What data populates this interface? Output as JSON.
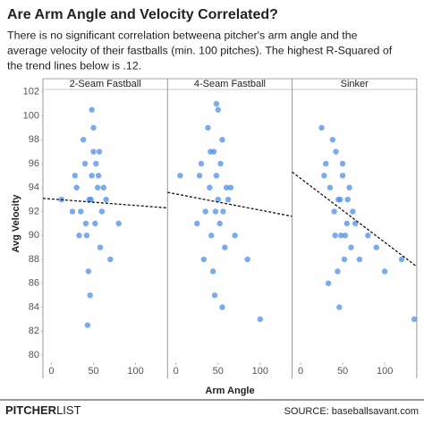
{
  "title": "Are Arm Angle and Velocity Correlated?",
  "subtitle": [
    "There is no significant correlation betweena pitcher's arm angle and the",
    "average velocity of their fastballs (min. 100 pitches). The highest R-Squared of",
    "the trend lines below is .12."
  ],
  "x_label": "Arm Angle",
  "y_label": "Avg Velocity",
  "brand": {
    "bold": "PITCHER",
    "light": "LIST"
  },
  "source": "SOURCE: baseballsavant.com",
  "chart_data": [
    {
      "type": "scatter",
      "title": "2-Seam Fastball",
      "color": "#4f8fe6",
      "x": [
        30,
        35,
        40,
        42,
        45,
        48,
        50,
        52,
        55,
        58,
        60,
        38,
        44,
        47,
        53,
        62,
        25,
        28,
        33,
        65,
        70,
        50,
        46,
        41,
        56,
        80,
        12,
        48,
        43,
        57
      ],
      "y": [
        94,
        92,
        96,
        90,
        93,
        95,
        97,
        91,
        94,
        89,
        92,
        98,
        87,
        93,
        96,
        94,
        92,
        95,
        90,
        93,
        88,
        99,
        85,
        91,
        95,
        91,
        93,
        100.5,
        82.5,
        97
      ],
      "trend": {
        "x": [
          -10,
          138
        ],
        "y": [
          93.1,
          92.3
        ]
      },
      "xlim": [
        -10,
        138
      ],
      "ylim": [
        79.4,
        102.2
      ],
      "xticks": [
        0,
        50,
        100
      ],
      "yticks": [
        80,
        82,
        84,
        86,
        88,
        90,
        92,
        94,
        96,
        98,
        100,
        102
      ]
    },
    {
      "type": "scatter",
      "title": "4-Seam Fastball",
      "color": "#4f8fe6",
      "x": [
        30,
        35,
        40,
        42,
        45,
        48,
        50,
        52,
        55,
        58,
        60,
        38,
        44,
        47,
        53,
        62,
        25,
        28,
        33,
        65,
        70,
        50,
        46,
        41,
        56,
        5,
        85,
        100,
        48,
        55
      ],
      "y": [
        96,
        92,
        94,
        90,
        97,
        95,
        93,
        91,
        98,
        89,
        94,
        99,
        87,
        92,
        96,
        93,
        91,
        95,
        88,
        94,
        90,
        100.5,
        85,
        97,
        92,
        95,
        88,
        83,
        101,
        84
      ],
      "trend": {
        "x": [
          -10,
          138
        ],
        "y": [
          93.6,
          91.6
        ]
      },
      "xlim": [
        -10,
        138
      ],
      "ylim": [
        79.4,
        102.2
      ],
      "xticks": [
        0,
        50,
        100
      ]
    },
    {
      "type": "scatter",
      "title": "Sinker",
      "color": "#4f8fe6",
      "x": [
        30,
        35,
        40,
        42,
        45,
        48,
        50,
        52,
        55,
        58,
        60,
        38,
        44,
        47,
        53,
        62,
        25,
        28,
        33,
        65,
        70,
        50,
        46,
        41,
        56,
        80,
        90,
        100,
        120,
        135
      ],
      "y": [
        96,
        94,
        92,
        97,
        93,
        90,
        95,
        88,
        91,
        94,
        89,
        98,
        87,
        93,
        90,
        92,
        99,
        95,
        86,
        91,
        88,
        96,
        84,
        90,
        93,
        90,
        89,
        87,
        88,
        83
      ],
      "trend": {
        "x": [
          -10,
          138
        ],
        "y": [
          95.3,
          87.4
        ]
      },
      "xlim": [
        -10,
        138
      ],
      "ylim": [
        79.4,
        102.2
      ],
      "xticks": [
        0,
        50,
        100
      ]
    }
  ]
}
